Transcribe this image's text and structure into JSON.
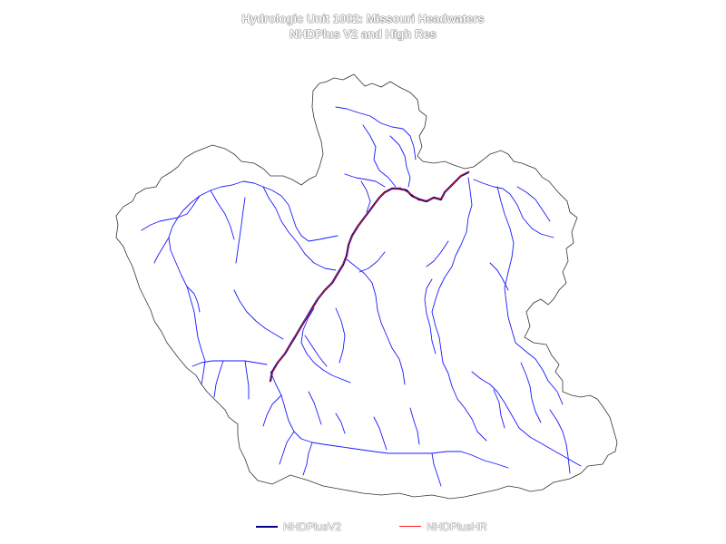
{
  "title": {
    "line1": "Hydrologic Unit 1002: Missouri Headwaters",
    "line2": "NHDPlus V2 and High Res"
  },
  "legend": {
    "items": [
      {
        "label": "NHDPlusV2",
        "color": "#00008b"
      },
      {
        "label": "NHDPlusHR",
        "color": "#ff0000"
      }
    ]
  },
  "colors": {
    "boundary": "#333333",
    "flowlines": "#0000ff",
    "mainstem_v2": "#00008b",
    "mainstem_hr": "#ff0000"
  }
}
